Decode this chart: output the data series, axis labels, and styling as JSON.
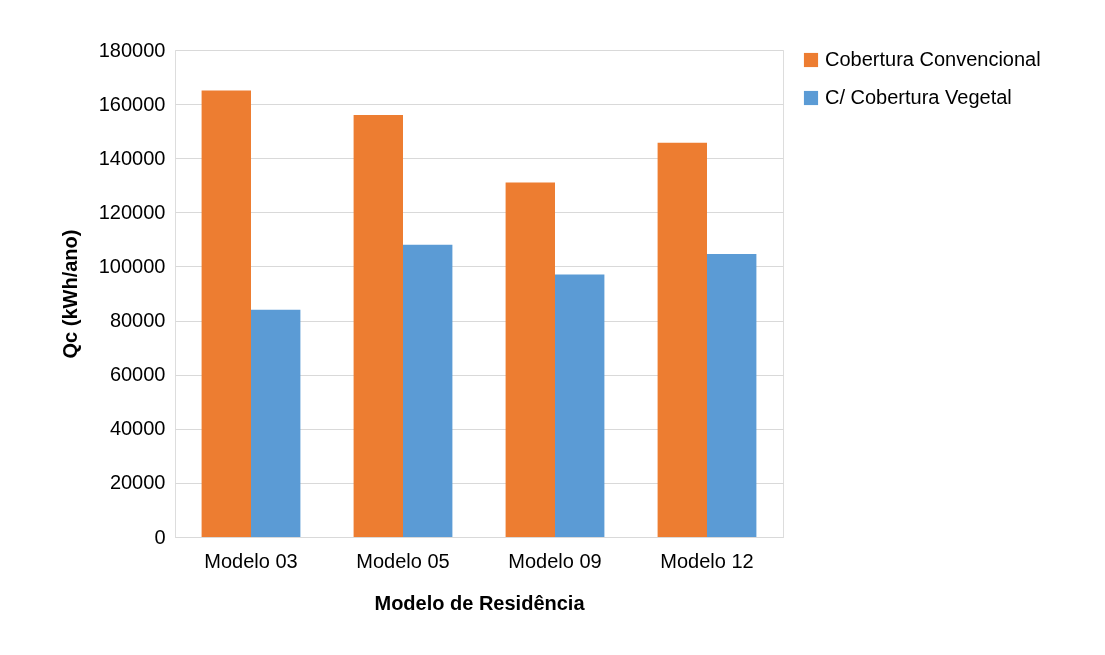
{
  "chart_data": {
    "type": "bar",
    "xlabel": "Modelo de Residência",
    "ylabel": "Qc (kWh/ano)",
    "categories": [
      "Modelo 03",
      "Modelo 05",
      "Modelo 09",
      "Modelo 12"
    ],
    "series": [
      {
        "name": "Cobertura Convencional",
        "color": "#ed7d31",
        "values": [
          165000,
          156000,
          131000,
          145700
        ]
      },
      {
        "name": "C/ Cobertura Vegetal",
        "color": "#5b9bd5",
        "values": [
          84000,
          108000,
          97000,
          104600
        ]
      }
    ],
    "ylim": [
      0,
      180000
    ],
    "yticks": [
      0,
      20000,
      40000,
      60000,
      80000,
      100000,
      120000,
      140000,
      160000,
      180000
    ],
    "grid": "y",
    "legend": "right"
  }
}
